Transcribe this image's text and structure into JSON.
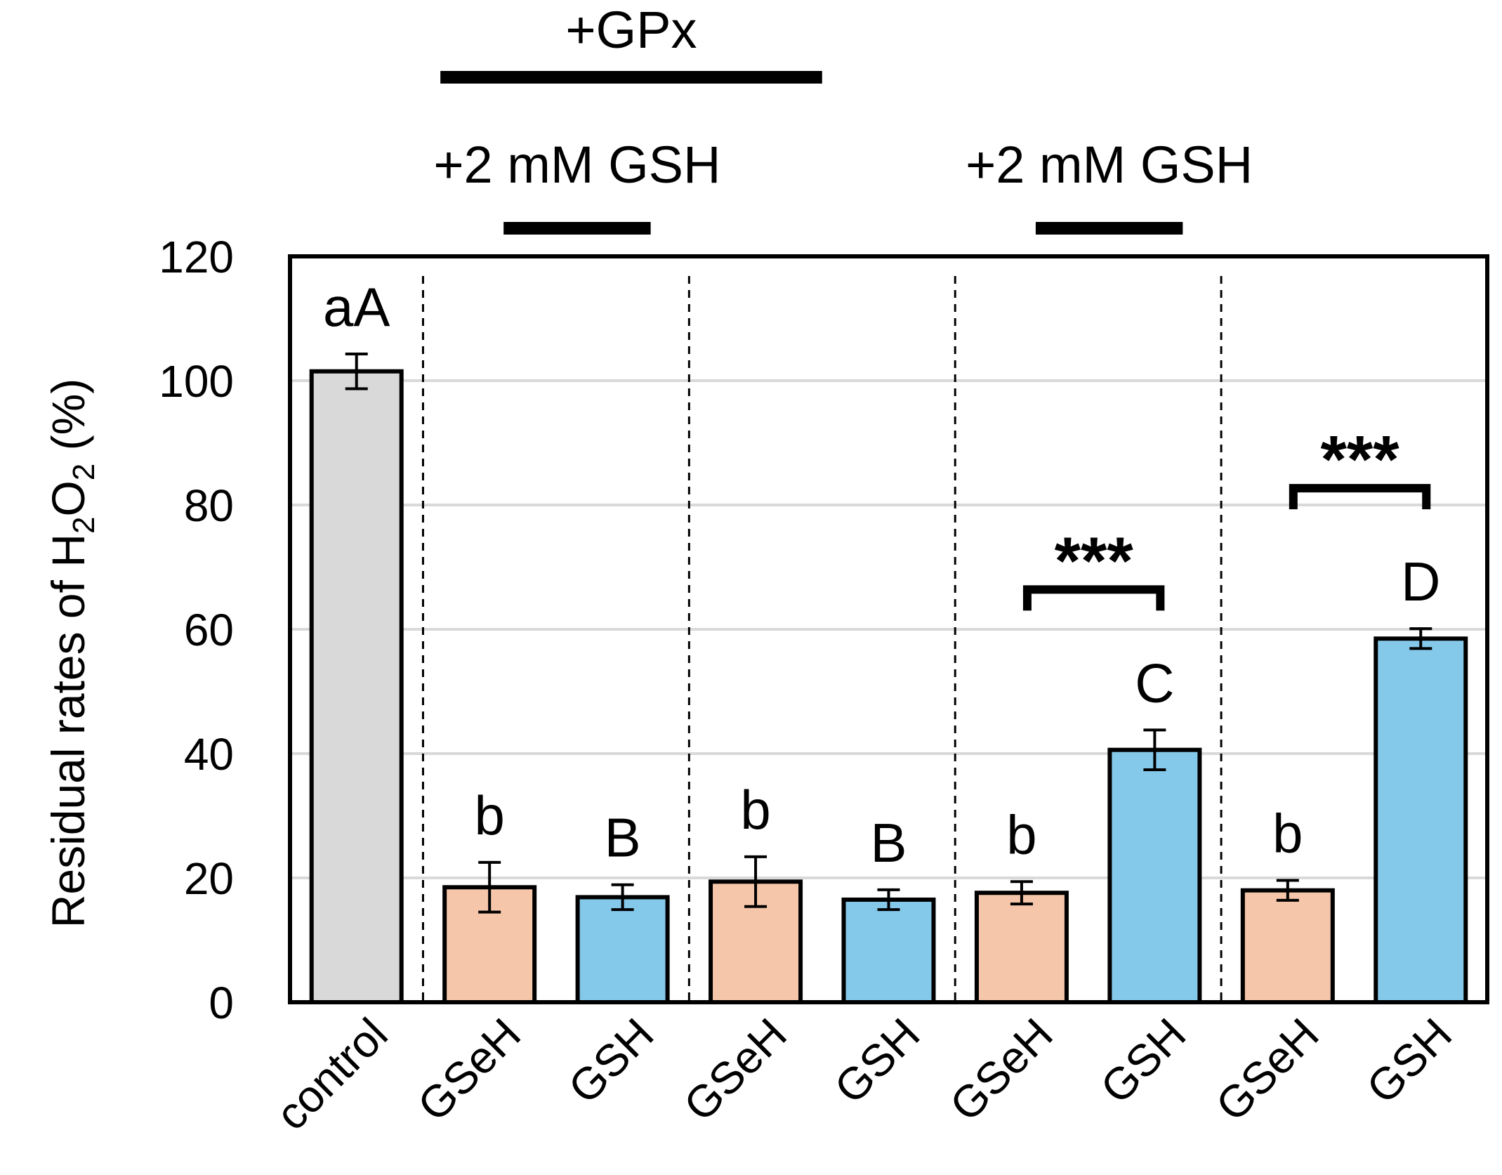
{
  "chart_data": {
    "type": "bar",
    "title": "",
    "xlabel": "",
    "ylabel": "Residual rates of H2O2 (%)",
    "ylabel_parts": {
      "pre": "Residual rates of H",
      "sub1": "2",
      "mid": "O",
      "sub2": "2",
      "post": " (%)"
    },
    "ylim": [
      0,
      120
    ],
    "yticks": [
      0,
      20,
      40,
      60,
      80,
      100,
      120
    ],
    "grid": true,
    "categories": [
      "control",
      "GSeH",
      "GSH",
      "GSeH",
      "GSH",
      "GSeH",
      "GSH",
      "GSeH",
      "GSH"
    ],
    "values": [
      101.5,
      18.5,
      16.9,
      19.4,
      16.5,
      17.6,
      40.6,
      18.0,
      58.5
    ],
    "errors": [
      2.8,
      4.0,
      2.0,
      4.0,
      1.6,
      1.8,
      3.2,
      1.6,
      1.6
    ],
    "bar_colors": [
      "#d9d9d9",
      "#f5c6a9",
      "#85c9ea",
      "#f5c6a9",
      "#85c9ea",
      "#f5c6a9",
      "#85c9ea",
      "#f5c6a9",
      "#85c9ea"
    ],
    "letters": [
      "aA",
      "b",
      "B",
      "b",
      "B",
      "b",
      "C",
      "b",
      "D"
    ],
    "group_separators_after": [
      0,
      2,
      4,
      6
    ],
    "brackets": [
      {
        "from": 1,
        "to": 3,
        "label": "+2 mM GSH",
        "level": "lower"
      },
      {
        "from": 1,
        "to": 4,
        "label": "+GPx",
        "level": "upper"
      },
      {
        "from": 5,
        "to": 6,
        "label": "+2 mM GSH",
        "level": "lower"
      }
    ],
    "significance": [
      {
        "from": 5,
        "to": 6,
        "label": "***"
      },
      {
        "from": 7,
        "to": 8,
        "label": "***"
      }
    ]
  },
  "colors": {
    "axis": "#000000",
    "grid": "#d9d9d9",
    "control": "#d9d9d9",
    "gseh": "#f5c6a9",
    "gsh": "#85c9ea"
  }
}
